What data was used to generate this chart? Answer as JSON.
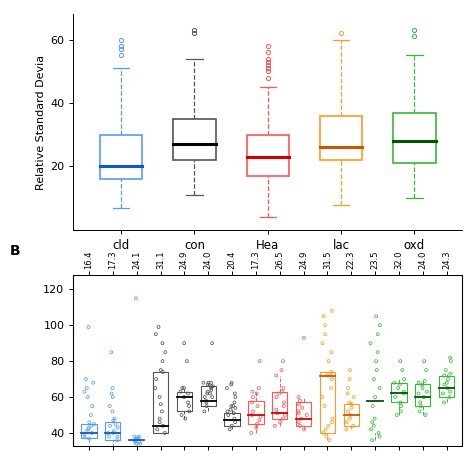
{
  "panel_A": {
    "groups": [
      "cld",
      "con",
      "Hea",
      "lac",
      "oxd"
    ],
    "colors": [
      "#5599ff",
      "#555555",
      "#ff5555",
      "#ff9922",
      "#33bb33"
    ],
    "median_colors": [
      "#1155cc",
      "#000000",
      "#cc0000",
      "#cc5500",
      "#005500"
    ],
    "box_data": {
      "cld": {
        "q1": 16,
        "median": 20,
        "q3": 30,
        "whisker_low": 7,
        "whisker_high": 51,
        "outliers": [
          55,
          57,
          58,
          60
        ]
      },
      "con": {
        "q1": 22,
        "median": 27,
        "q3": 35,
        "whisker_low": 11,
        "whisker_high": 54,
        "outliers": [
          62,
          63
        ]
      },
      "Hea": {
        "q1": 17,
        "median": 23,
        "q3": 30,
        "whisker_low": 4,
        "whisker_high": 45,
        "outliers": [
          48,
          50,
          51,
          52,
          53,
          54,
          56,
          58
        ]
      },
      "lac": {
        "q1": 22,
        "median": 26,
        "q3": 36,
        "whisker_low": 8,
        "whisker_high": 60,
        "outliers": [
          62
        ]
      },
      "oxd": {
        "q1": 21,
        "median": 28,
        "q3": 37,
        "whisker_low": 10,
        "whisker_high": 55,
        "outliers": [
          61,
          63
        ]
      }
    },
    "ylabel": "Relative Standard Devia",
    "yticks": [
      20,
      40,
      60
    ],
    "ylim": [
      0,
      68
    ]
  },
  "panel_B": {
    "columns": [
      "16.4",
      "17.3",
      "24.1",
      "31.1",
      "24.9",
      "24.0",
      "20.4",
      "17.3",
      "26.5",
      "24.9",
      "31.5",
      "22.3",
      "23.5",
      "32.0",
      "24.0",
      "24.3"
    ],
    "col_colors": [
      "#5599ff",
      "#5599ff",
      "#5599ff",
      "#555555",
      "#555555",
      "#555555",
      "#555555",
      "#ff5555",
      "#ff5555",
      "#ff5555",
      "#ff9922",
      "#ff9922",
      "#33bb33",
      "#33bb33",
      "#33bb33",
      "#33bb33"
    ],
    "median_colors": [
      "#1155cc",
      "#1155cc",
      "#1155cc",
      "#000000",
      "#000000",
      "#000000",
      "#000000",
      "#cc0000",
      "#cc0000",
      "#cc0000",
      "#cc5500",
      "#cc5500",
      "#005500",
      "#005500",
      "#005500",
      "#005500"
    ],
    "col_groups": [
      "cld",
      "cld",
      "cld",
      "con",
      "con",
      "con",
      "con",
      "Hea",
      "Hea",
      "Hea",
      "lac",
      "lac",
      "oxd",
      "oxd",
      "oxd",
      "oxd"
    ],
    "medians": [
      40,
      40,
      36,
      44,
      60,
      58,
      47,
      50,
      51,
      48,
      72,
      50,
      58,
      62,
      60,
      65
    ],
    "q1": [
      37,
      36,
      34,
      40,
      52,
      55,
      44,
      45,
      48,
      44,
      40,
      44,
      40,
      57,
      55,
      60
    ],
    "q3": [
      45,
      46,
      38,
      74,
      63,
      66,
      51,
      58,
      63,
      57,
      74,
      56,
      40,
      68,
      67,
      72
    ],
    "whisker_low": [
      35,
      32,
      32,
      40,
      48,
      52,
      42,
      40,
      44,
      42,
      36,
      42,
      36,
      50,
      50,
      57
    ],
    "whisker_high": [
      45,
      47,
      38,
      74,
      65,
      68,
      54,
      63,
      72,
      60,
      74,
      57,
      40,
      70,
      69,
      73
    ],
    "dot_data": [
      [
        38,
        40,
        42,
        44,
        45,
        46,
        37,
        39,
        41,
        43,
        50,
        55,
        60,
        63,
        65,
        68,
        70,
        99
      ],
      [
        38,
        40,
        41,
        43,
        44,
        47,
        36,
        38,
        40,
        45,
        48,
        52,
        55,
        60,
        62,
        65,
        85
      ],
      [
        34,
        35,
        36,
        37,
        38,
        34,
        35,
        37,
        36,
        37,
        38,
        115
      ],
      [
        40,
        42,
        44,
        46,
        48,
        52,
        56,
        60,
        65,
        70,
        74,
        75,
        80,
        85,
        90,
        95,
        99
      ],
      [
        48,
        50,
        52,
        55,
        57,
        60,
        62,
        63,
        65,
        65,
        80,
        90
      ],
      [
        52,
        55,
        57,
        58,
        60,
        62,
        63,
        65,
        66,
        68,
        67,
        68,
        60,
        62,
        64,
        66,
        68,
        90
      ],
      [
        42,
        44,
        46,
        48,
        50,
        51,
        52,
        53,
        54,
        55,
        55,
        57,
        60,
        62,
        65,
        67,
        68
      ],
      [
        40,
        43,
        45,
        47,
        49,
        50,
        52,
        55,
        57,
        60,
        62,
        63,
        65,
        80
      ],
      [
        44,
        46,
        48,
        50,
        51,
        53,
        55,
        57,
        60,
        62,
        63,
        65,
        72,
        75,
        80
      ],
      [
        42,
        44,
        46,
        48,
        50,
        51,
        52,
        54,
        56,
        58,
        60,
        93
      ],
      [
        36,
        38,
        40,
        42,
        44,
        46,
        48,
        55,
        60,
        65,
        70,
        72,
        73,
        74,
        80,
        85,
        90,
        95,
        100,
        105,
        108
      ],
      [
        42,
        44,
        46,
        48,
        50,
        52,
        54,
        56,
        57,
        60,
        62,
        65,
        70,
        75
      ],
      [
        36,
        38,
        40,
        42,
        44,
        46,
        48,
        55,
        60,
        65,
        70,
        75,
        80,
        85,
        90,
        95,
        100,
        105
      ],
      [
        50,
        52,
        55,
        57,
        60,
        62,
        63,
        65,
        67,
        68,
        70,
        75,
        80
      ],
      [
        50,
        52,
        55,
        57,
        60,
        62,
        63,
        65,
        67,
        68,
        69,
        75,
        80
      ],
      [
        57,
        60,
        62,
        63,
        65,
        67,
        68,
        70,
        72,
        73,
        75,
        80,
        82
      ]
    ],
    "yticks": [
      40,
      60,
      80,
      100,
      120
    ],
    "ylim": [
      33,
      128
    ],
    "ylabel": ""
  },
  "background_color": "#ffffff"
}
